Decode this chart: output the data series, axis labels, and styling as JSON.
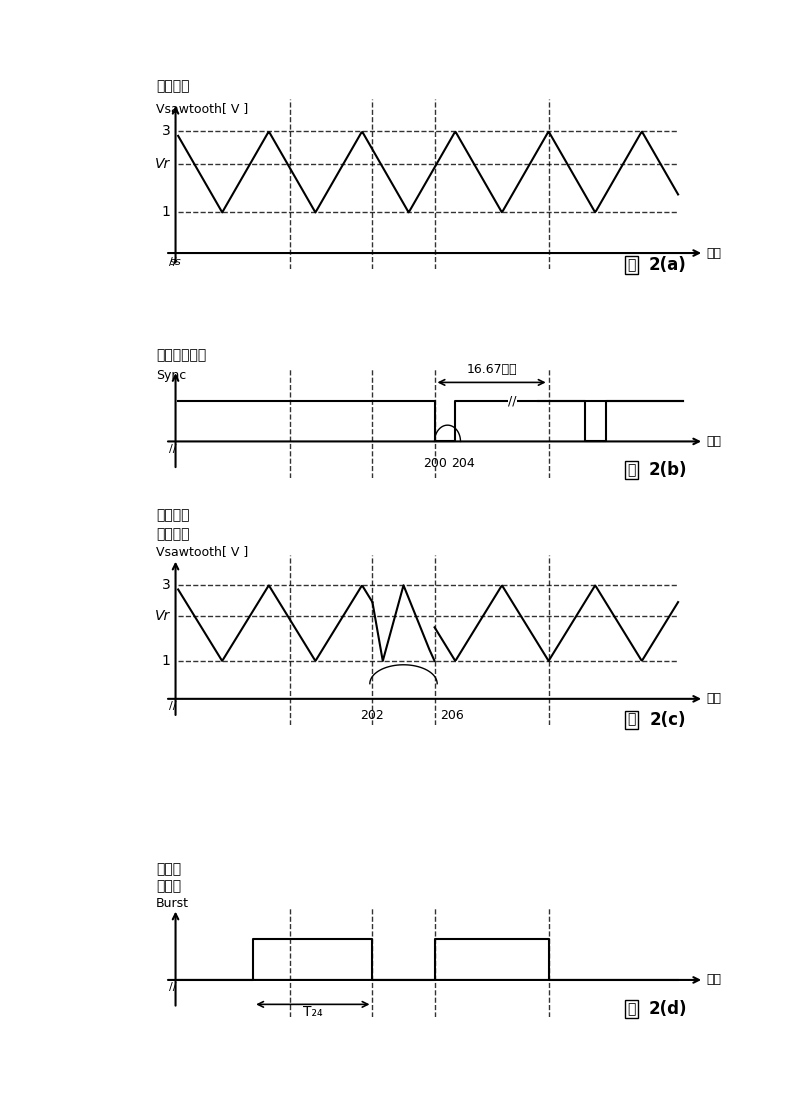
{
  "fig_width": 8.0,
  "fig_height": 10.99,
  "bg_color": "#ffffff",
  "panels": [
    "2(a)",
    "2(b)",
    "2(c)",
    "2(d)"
  ],
  "panel_labels_cn": [
    "图",
    "图",
    "图",
    "图"
  ],
  "title_a_line1": "振荡信号",
  "title_a_line2": "Vsawtooth[ V ]",
  "title_b_line1": "垂直同步信号",
  "title_b_line2": "Sync",
  "title_c_line1": "同步后的",
  "title_c_line2": "振荡信号",
  "title_c_line3": "Vsawtooth[ V ]",
  "title_d_line1": "爆发脉",
  "title_d_line2": "冲信号",
  "title_d_line3": "Burst",
  "time_label": "时间",
  "annotation_16_67": "16.67毫秒",
  "annotation_T24": "T₂₄",
  "label_200": "200",
  "label_204": "204",
  "label_202": "202",
  "label_206": "206",
  "vr_label": "Vr",
  "label_3": "3",
  "label_1": "1",
  "vlines": [
    2.2,
    3.8,
    5.0,
    7.2
  ],
  "period": 1.8,
  "amp_min": 1.0,
  "amp_max": 3.0,
  "vr_level": 2.2,
  "sync_high": 1.0,
  "burst_high": 1.0
}
